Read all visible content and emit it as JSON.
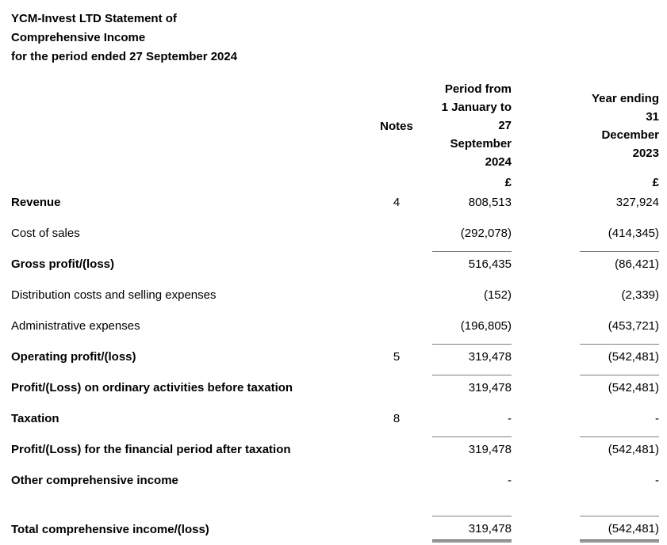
{
  "doc": {
    "title_lines": [
      "YCM-Invest LTD Statement of",
      "Comprehensive Income",
      "for the period ended 27 September 2024"
    ],
    "header": {
      "notes_label": "Notes",
      "period_lines": [
        "Period from",
        "1 January to",
        "27",
        "September",
        "2024"
      ],
      "year_lines": [
        "Year ending",
        "31",
        "December",
        "2023"
      ],
      "currency_period": "£",
      "currency_year": "£"
    },
    "rows": [
      {
        "label": "Revenue",
        "note": "4",
        "period": "808,513",
        "year": "327,924"
      },
      {
        "label": "Cost of sales",
        "note": "",
        "period": "(292,078)",
        "year": "(414,345)"
      },
      {
        "label": "Gross profit/(loss)",
        "note": "",
        "period": "516,435",
        "year": "(86,421)"
      },
      {
        "label": "Distribution costs and selling expenses",
        "note": "",
        "period": "(152)",
        "year": "(2,339)"
      },
      {
        "label": "Administrative expenses",
        "note": "",
        "period": "(196,805)",
        "year": "(453,721)"
      },
      {
        "label": "Operating profit/(loss)",
        "note": "5",
        "period": "319,478",
        "year": "(542,481)"
      },
      {
        "label": "Profit/(Loss) on ordinary activities before taxation",
        "note": "",
        "period": "319,478",
        "year": "(542,481)"
      },
      {
        "label": "Taxation",
        "note": "8",
        "period": "-",
        "year": "-"
      },
      {
        "label": "Profit/(Loss) for the financial period after taxation",
        "note": "",
        "period": "319,478",
        "year": "(542,481)"
      },
      {
        "label": "Other comprehensive income",
        "note": "",
        "period": "-",
        "year": "-"
      },
      {
        "label": "Total comprehensive income/(loss)",
        "note": "",
        "period": "319,478",
        "year": "(542,481)"
      }
    ],
    "line_color": "#7f7f7f",
    "text_color": "#000000"
  }
}
